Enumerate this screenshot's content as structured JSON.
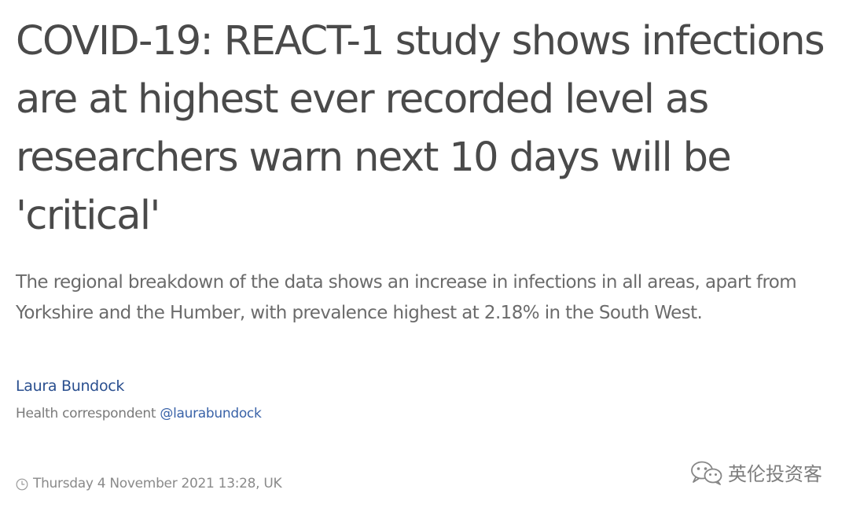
{
  "article": {
    "headline": "COVID-19: REACT-1 study shows infections are at highest ever recorded level as researchers warn next 10 days will be 'critical'",
    "standfirst": "The regional breakdown of the data shows an increase in infections in all areas, apart from Yorkshire and the Humber, with prevalence highest at 2.18% in the South West.",
    "author": {
      "name": "Laura Bundock",
      "role": "Health correspondent",
      "handle": "@laurabundock"
    },
    "timestamp": "Thursday 4 November 2021 13:28, UK",
    "timestamp_icon": "clock-icon"
  },
  "watermark": {
    "text": "英伦投资客",
    "icon": "wechat-icon"
  },
  "colors": {
    "headline": "#4a4a4a",
    "standfirst": "#6b6b6b",
    "author_link": "#2a4f8f",
    "handle_link": "#3a63a8",
    "meta": "#8a8a8a",
    "background": "#ffffff"
  }
}
